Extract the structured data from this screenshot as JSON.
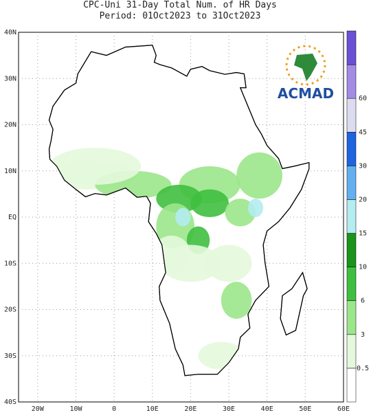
{
  "title": {
    "line1": "CPC-Uni 31-Day Total Num. of HR Days",
    "line2": "Period: 01Oct2023 to 31Oct2023"
  },
  "map": {
    "latitude_labels": [
      "40N",
      "30N",
      "20N",
      "10N",
      "EQ",
      "10S",
      "20S",
      "30S",
      "40S"
    ],
    "longitude_labels": [
      "20W",
      "10W",
      "0",
      "10E",
      "20E",
      "30E",
      "40E",
      "50E",
      "60E"
    ]
  },
  "colorbar": {
    "levels": [
      0.5,
      3,
      6,
      10,
      15,
      20,
      30,
      45,
      60
    ],
    "colors": [
      "#ffffff",
      "#e4f8dc",
      "#9be68a",
      "#3fbf3f",
      "#1a941a",
      "#b4ecf0",
      "#64aff0",
      "#1e64e0",
      "#dcdcf0",
      "#a28ce6",
      "#6a50d6"
    ]
  },
  "logo": {
    "text": "ACMAD"
  }
}
